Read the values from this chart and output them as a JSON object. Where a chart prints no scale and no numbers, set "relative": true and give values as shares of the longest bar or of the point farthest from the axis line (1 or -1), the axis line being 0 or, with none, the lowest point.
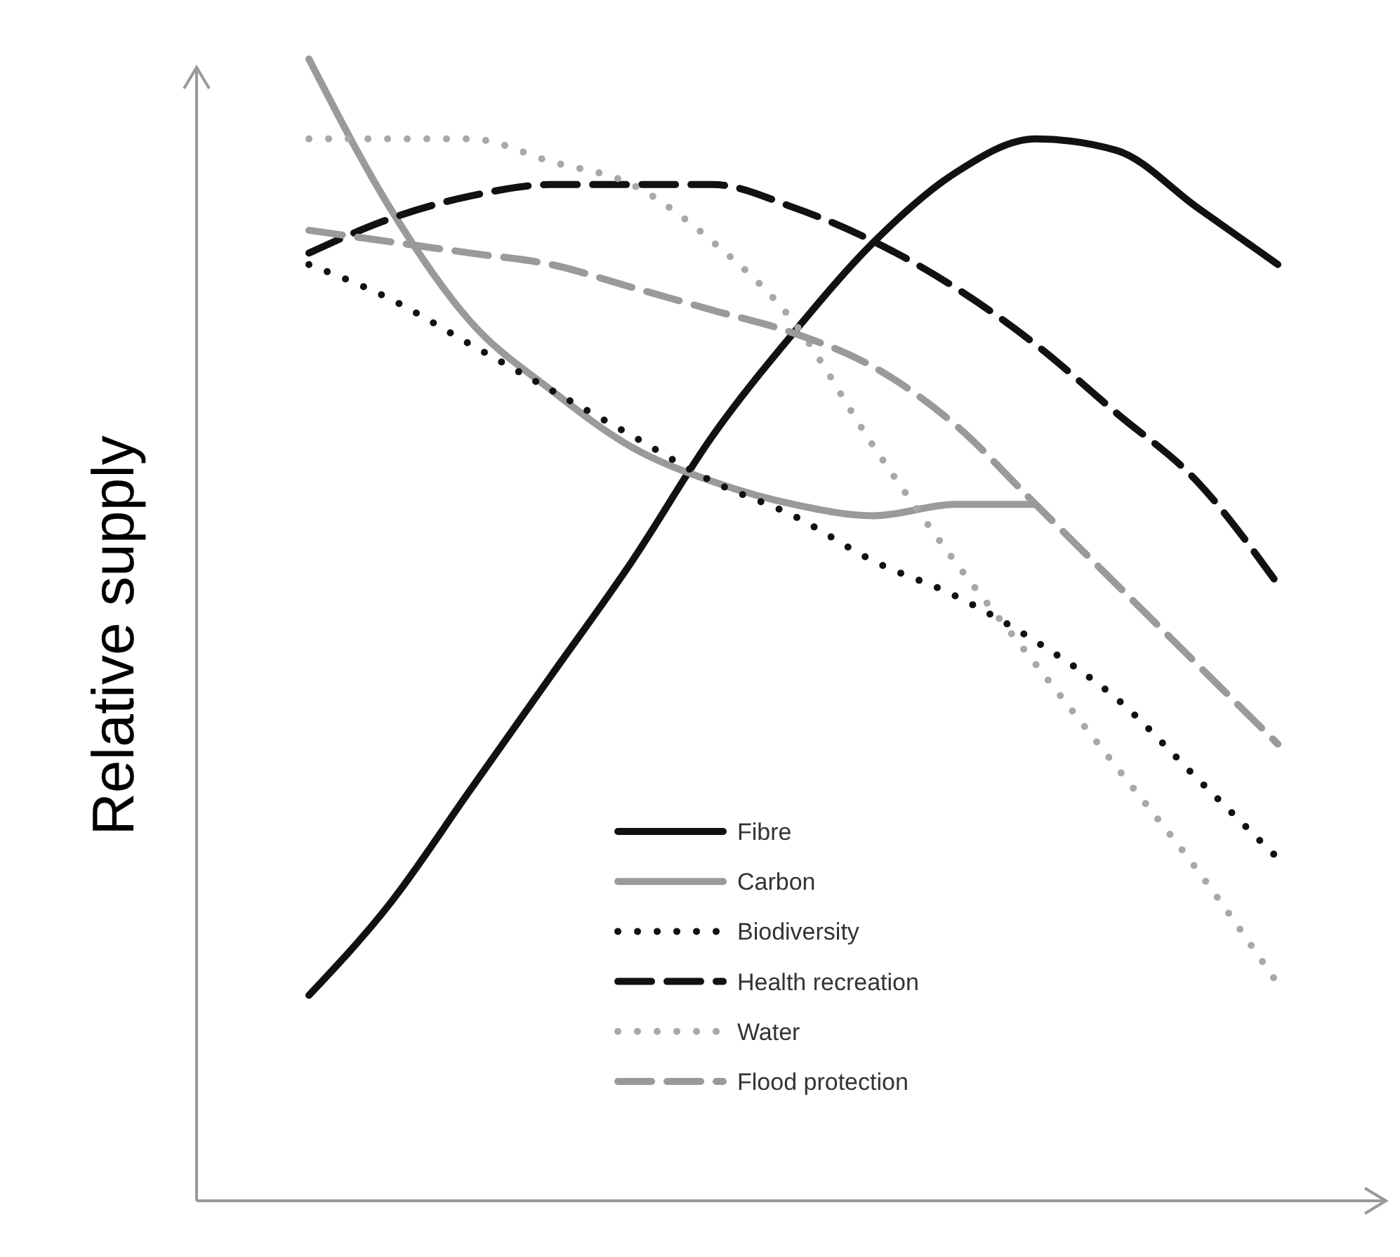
{
  "chart_data": {
    "type": "line",
    "relative": true,
    "ylabel": "Relative supply",
    "categories": [
      null,
      null,
      null,
      null,
      null,
      null,
      null,
      null,
      null,
      null,
      null,
      null,
      null
    ],
    "legend": "bottom",
    "series": [
      {
        "name": "Fibre",
        "color": "#111111",
        "line_style": "solid",
        "values": [
          0.18,
          0.26,
          0.36,
          0.46,
          0.56,
          0.67,
          0.76,
          0.84,
          0.9,
          0.93,
          0.92,
          0.87,
          0.82
        ]
      },
      {
        "name": "Carbon",
        "color": "#9a9a9a",
        "line_style": "solid",
        "values": [
          1.0,
          0.87,
          0.77,
          0.71,
          0.66,
          0.63,
          0.61,
          0.6,
          0.61,
          0.61,
          null,
          null,
          null
        ]
      },
      {
        "name": "Biodiversity",
        "color": "#111111",
        "line_style": "dotted",
        "values": [
          0.82,
          0.79,
          0.75,
          0.71,
          0.67,
          0.63,
          0.6,
          0.56,
          0.53,
          0.49,
          0.44,
          0.37,
          0.3
        ]
      },
      {
        "name": "Health recreation",
        "color": "#111111",
        "line_style": "dashed",
        "values": [
          0.83,
          0.86,
          0.88,
          0.89,
          0.89,
          0.89,
          0.87,
          0.84,
          0.8,
          0.75,
          0.69,
          0.63,
          0.54
        ]
      },
      {
        "name": "Water",
        "color": "#a8a8a8",
        "line_style": "dotted",
        "values": [
          0.93,
          0.93,
          0.93,
          0.91,
          0.89,
          0.84,
          0.77,
          0.66,
          0.56,
          0.47,
          0.38,
          0.29,
          0.19
        ]
      },
      {
        "name": "Flood protection",
        "color": "#9a9a9a",
        "line_style": "dashed",
        "values": [
          0.85,
          0.84,
          0.83,
          0.82,
          0.8,
          0.78,
          0.76,
          0.73,
          0.68,
          0.61,
          0.54,
          0.47,
          0.4
        ]
      }
    ]
  }
}
